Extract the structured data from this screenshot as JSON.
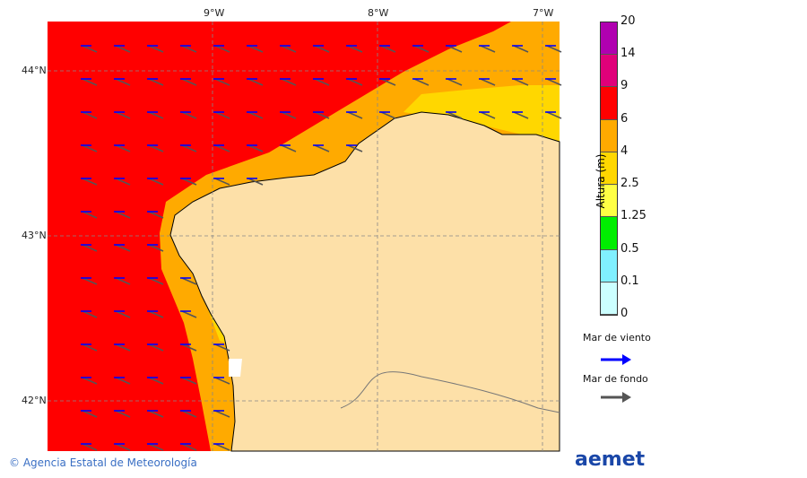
{
  "map": {
    "lon_ticks": [
      "9°W",
      "8°W",
      "7°W"
    ],
    "lat_ticks": [
      "44°N",
      "43°N",
      "42°N"
    ]
  },
  "colorbar": {
    "title": "Altura (m)",
    "levels": [
      "20",
      "14",
      "9",
      "6",
      "4",
      "2.5",
      "1.25",
      "0.5",
      "0.1",
      "0"
    ],
    "colors": [
      "#b000b0",
      "#e0007a",
      "#ff0000",
      "#ffaa00",
      "#ffd700",
      "#ffff44",
      "#00ee00",
      "#80f0ff",
      "#ccffff"
    ]
  },
  "legend": {
    "wind_sea": "Mar de viento",
    "swell": "Mar de fondo",
    "wind_color": "#0000ff",
    "swell_color": "#555555"
  },
  "footer": {
    "copyright": "© Agencia Estatal de Meteorología",
    "logo": "aemet"
  }
}
